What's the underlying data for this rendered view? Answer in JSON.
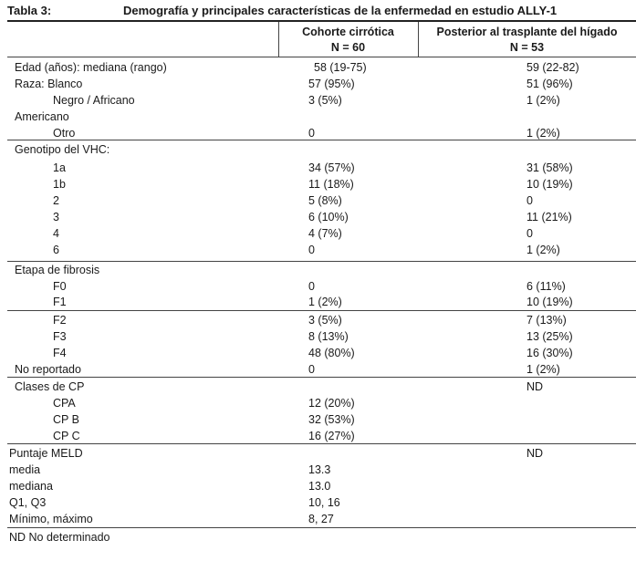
{
  "title": {
    "number": "Tabla 3:",
    "text": "Demografía y principales características de la enfermedad en estudio ALLY-1"
  },
  "columns": [
    {
      "label": "Cohorte cirrótica",
      "n": "N = 60"
    },
    {
      "label": "Posterior al trasplante del hígado",
      "n": "N = 53"
    }
  ],
  "rows": [
    {
      "label": "Edad (años): mediana (rango)",
      "v1": "58 (19-75)",
      "v2": "59 (22-82)"
    },
    {
      "label": "Raza: Blanco",
      "v1": "57 (95%)",
      "v2": "51 (96%)"
    },
    {
      "label": "Negro / Africano",
      "v1": "3 (5%)",
      "v2": "1 (2%)"
    },
    {
      "label": "Americano",
      "v1": "",
      "v2": ""
    },
    {
      "label": "Otro",
      "v1": "0",
      "v2": "1 (2%)"
    },
    {
      "label": "Genotipo del VHC:",
      "v1": "",
      "v2": ""
    },
    {
      "label": "1a",
      "v1": "34 (57%)",
      "v2": "31 (58%)"
    },
    {
      "label": "1b",
      "v1": "11 (18%)",
      "v2": "10 (19%)"
    },
    {
      "label": "2",
      "v1": "5 (8%)",
      "v2": "0"
    },
    {
      "label": "3",
      "v1": "6 (10%)",
      "v2": "11 (21%)"
    },
    {
      "label": "4",
      "v1": "4 (7%)",
      "v2": "0"
    },
    {
      "label": "6",
      "v1": "0",
      "v2": "1 (2%)"
    },
    {
      "label": "Etapa de fibrosis",
      "v1": "",
      "v2": ""
    },
    {
      "label": "F0",
      "v1": "0",
      "v2": "6 (11%)"
    },
    {
      "label": "F1",
      "v1": "1 (2%)",
      "v2": "10 (19%)"
    },
    {
      "label": "F2",
      "v1": "3 (5%)",
      "v2": "7 (13%)"
    },
    {
      "label": "F3",
      "v1": "8 (13%)",
      "v2": "13 (25%)"
    },
    {
      "label": "F4",
      "v1": "48 (80%)",
      "v2": "16 (30%)"
    },
    {
      "label": "No reportado",
      "v1": "0",
      "v2": "1 (2%)"
    },
    {
      "label": "Clases de CP",
      "v1": "",
      "v2": "ND"
    },
    {
      "label": "CPA",
      "v1": "12 (20%)",
      "v2": ""
    },
    {
      "label": "CP B",
      "v1": "32 (53%)",
      "v2": ""
    },
    {
      "label": "CP C",
      "v1": "16 (27%)",
      "v2": ""
    },
    {
      "label": "Puntaje MELD",
      "v1": "",
      "v2": "ND"
    },
    {
      "label": "media",
      "v1": "13.3",
      "v2": ""
    },
    {
      "label": "mediana",
      "v1": "13.0",
      "v2": ""
    },
    {
      "label": "Q1, Q3",
      "v1": "10, 16",
      "v2": ""
    },
    {
      "label": "Mínimo, máximo",
      "v1": "8, 27",
      "v2": ""
    }
  ],
  "footnote": "ND No determinado"
}
